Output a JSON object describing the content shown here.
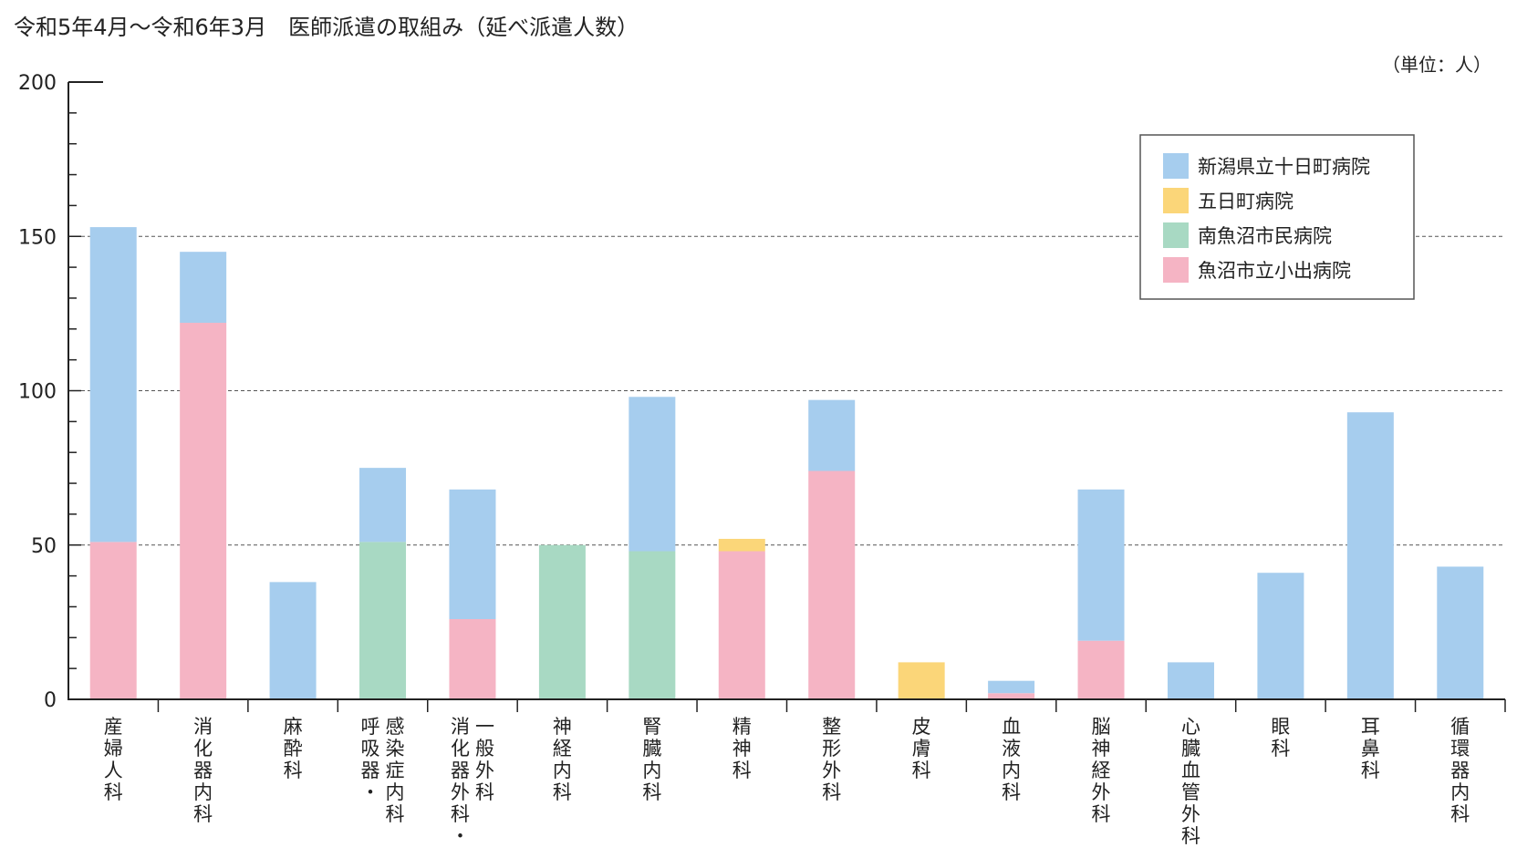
{
  "colors": {
    "tokamachi": "#a6cdee",
    "itsukamachi": "#fbd679",
    "minamiuonuma": "#a8d9c3",
    "koide": "#f5b4c4",
    "axis": "#222222",
    "grid": "#555555"
  },
  "chart_data": {
    "type": "bar",
    "stacked": true,
    "title": "令和5年4月～令和6年3月　医師派遣の取組み（延べ派遣人数）",
    "unit_label": "（単位：人）",
    "ylim": [
      0,
      200
    ],
    "y_ticks": [
      0,
      50,
      100,
      150,
      200
    ],
    "y_minor_step": 10,
    "grid_lines": [
      50,
      100,
      150
    ],
    "legend_position": "top-right",
    "categories": [
      [
        "産婦人科"
      ],
      [
        "消化器内科"
      ],
      [
        "麻酔科"
      ],
      [
        "感染症内科",
        "呼吸器・"
      ],
      [
        "一般外科",
        "消化器外科・"
      ],
      [
        "神経内科"
      ],
      [
        "腎臓内科"
      ],
      [
        "精神科"
      ],
      [
        "整形外科"
      ],
      [
        "皮膚科"
      ],
      [
        "血液内科"
      ],
      [
        "脳神経外科"
      ],
      [
        "心臓血管外科"
      ],
      [
        "眼科"
      ],
      [
        "耳鼻科"
      ],
      [
        "循環器内科"
      ]
    ],
    "series": [
      {
        "name": "魚沼市立小出病院",
        "color_key": "koide",
        "values": [
          51,
          122,
          0,
          0,
          26,
          0,
          0,
          48,
          74,
          0,
          2,
          19,
          0,
          0,
          0,
          0
        ]
      },
      {
        "name": "南魚沼市民病院",
        "color_key": "minamiuonuma",
        "values": [
          0,
          0,
          0,
          51,
          0,
          50,
          48,
          0,
          0,
          0,
          0,
          0,
          0,
          0,
          0,
          0
        ]
      },
      {
        "name": "五日町病院",
        "color_key": "itsukamachi",
        "values": [
          0,
          0,
          0,
          0,
          0,
          0,
          0,
          4,
          0,
          12,
          0,
          0,
          0,
          0,
          0,
          0
        ]
      },
      {
        "name": "新潟県立十日町病院",
        "color_key": "tokamachi",
        "values": [
          102,
          23,
          38,
          24,
          42,
          0,
          50,
          0,
          23,
          0,
          4,
          49,
          12,
          41,
          93,
          43
        ]
      }
    ],
    "legend_order": [
      "新潟県立十日町病院",
      "五日町病院",
      "南魚沼市民病院",
      "魚沼市立小出病院"
    ]
  }
}
